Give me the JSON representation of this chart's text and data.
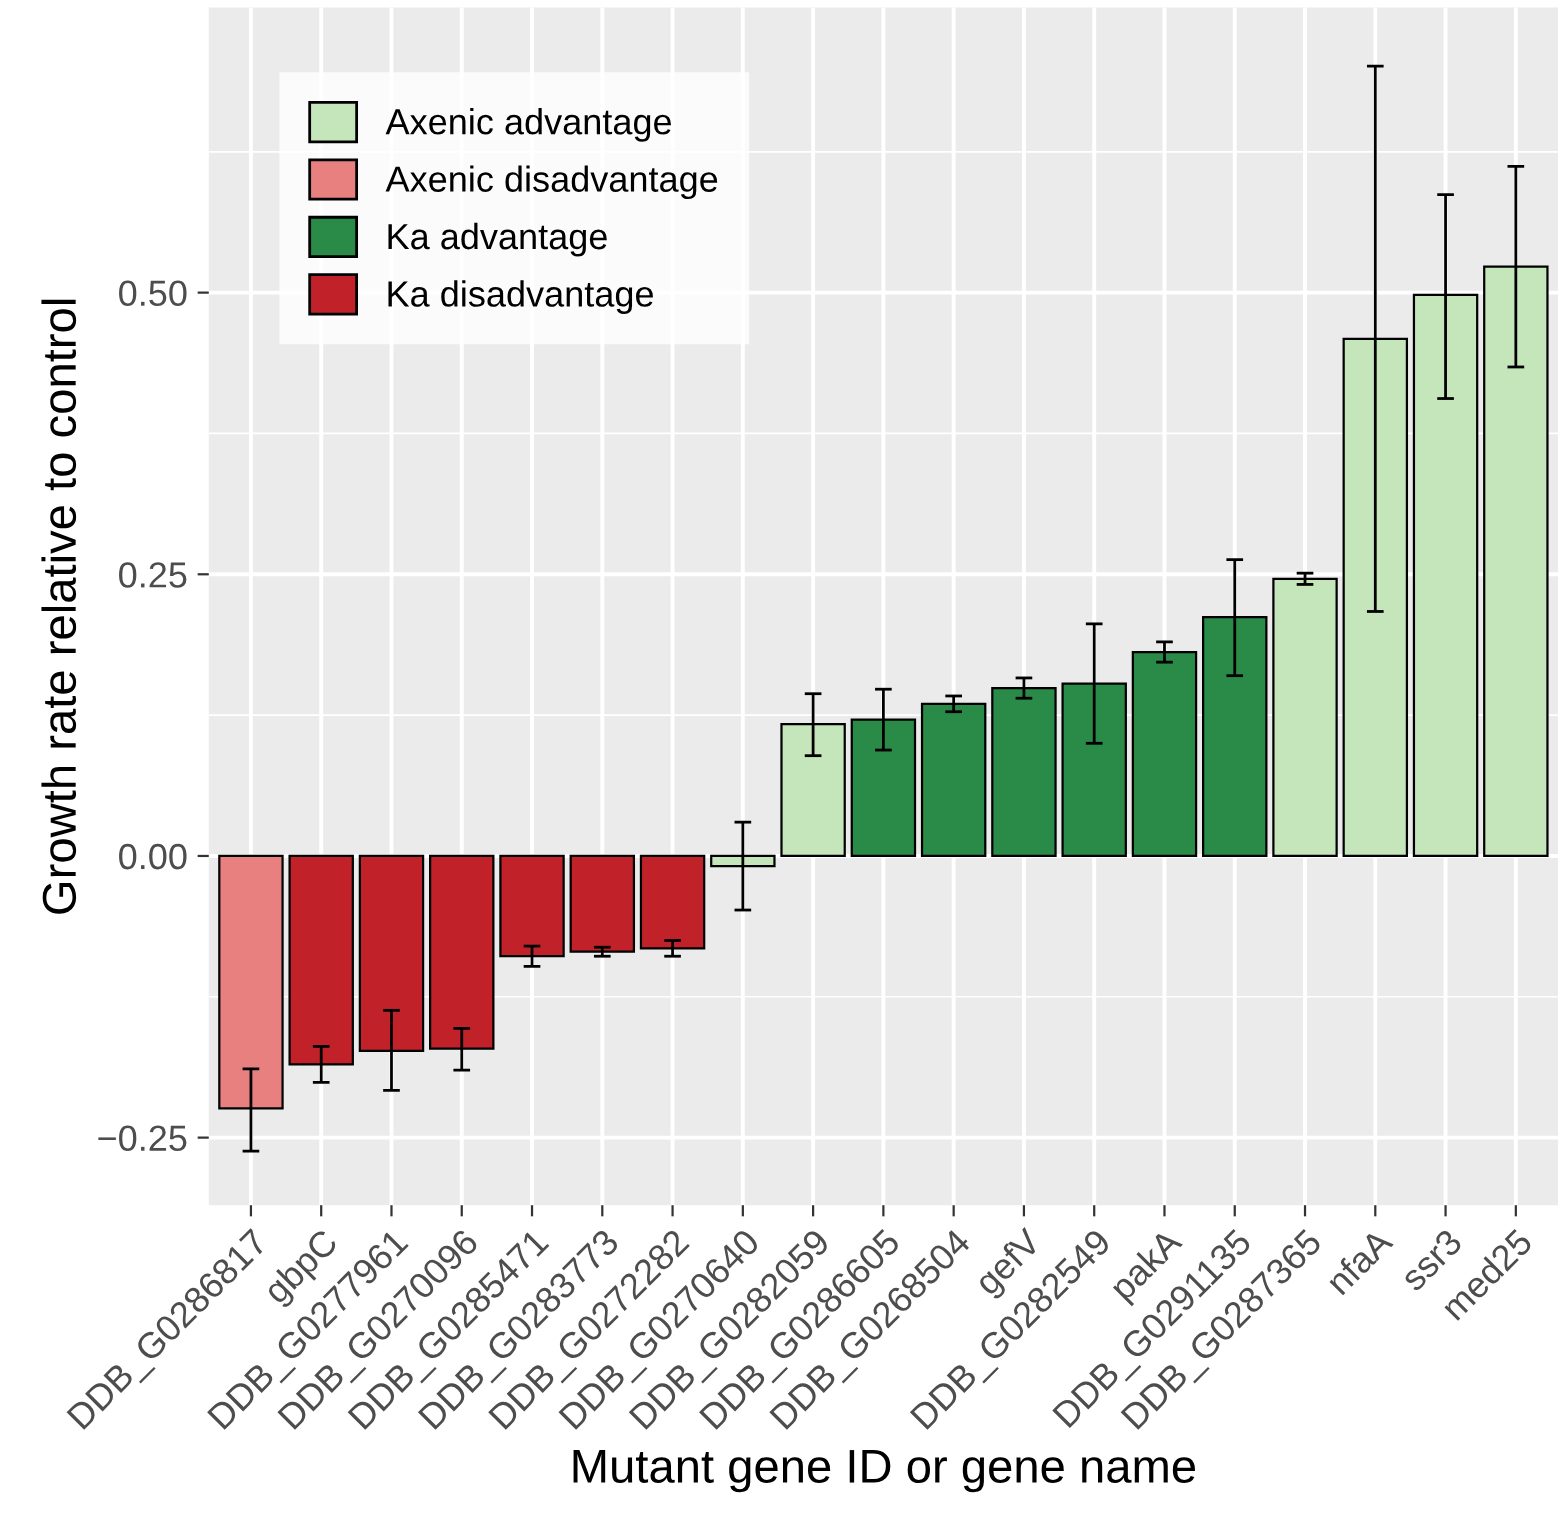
{
  "chart_data": {
    "type": "bar",
    "xlabel": "Mutant gene ID or gene name",
    "ylabel": "Growth rate relative to control",
    "categories": [
      "DDB_G0286817",
      "gbpC",
      "DDB_G0277961",
      "DDB_G0270096",
      "DDB_G0285471",
      "DDB_G0283773",
      "DDB_G0272282",
      "DDB_G0270640",
      "DDB_G0282059",
      "DDB_G0286605",
      "DDB_G0268504",
      "gefV",
      "DDB_G0282549",
      "pakA",
      "DDB_G0291135",
      "DDB_G0287365",
      "nfaA",
      "ssr3",
      "med25"
    ],
    "series": [
      {
        "name": "Axenic advantage",
        "color": "#c5e5bb",
        "values": [
          null,
          null,
          null,
          null,
          null,
          null,
          null,
          -0.009,
          0.117,
          null,
          null,
          null,
          null,
          null,
          null,
          0.246,
          0.459,
          0.498,
          0.523
        ],
        "errors": [
          null,
          null,
          null,
          null,
          null,
          null,
          null,
          [
            -0.048,
            0.03
          ],
          [
            0.089,
            0.144
          ],
          null,
          null,
          null,
          null,
          null,
          null,
          [
            0.241,
            0.251
          ],
          [
            0.217,
            0.701
          ],
          [
            0.406,
            0.587
          ],
          [
            0.434,
            0.612
          ]
        ]
      },
      {
        "name": "Axenic disadvantage",
        "color": "#e88080",
        "values": [
          -0.224,
          null,
          null,
          null,
          null,
          null,
          null,
          null,
          null,
          null,
          null,
          null,
          null,
          null,
          null,
          null,
          null,
          null,
          null
        ],
        "errors": [
          [
            -0.262,
            -0.189
          ],
          null,
          null,
          null,
          null,
          null,
          null,
          null,
          null,
          null,
          null,
          null,
          null,
          null,
          null,
          null,
          null,
          null,
          null
        ]
      },
      {
        "name": "Ka advantage",
        "color": "#2a8a47",
        "values": [
          null,
          null,
          null,
          null,
          null,
          null,
          null,
          null,
          null,
          0.121,
          0.135,
          0.149,
          0.153,
          0.181,
          0.212,
          null,
          null,
          null,
          null
        ],
        "errors": [
          null,
          null,
          null,
          null,
          null,
          null,
          null,
          null,
          null,
          [
            0.094,
            0.148
          ],
          [
            0.128,
            0.142
          ],
          [
            0.14,
            0.158
          ],
          [
            0.1,
            0.206
          ],
          [
            0.172,
            0.19
          ],
          [
            0.16,
            0.263
          ],
          null,
          null,
          null,
          null
        ]
      },
      {
        "name": "Ka disadvantage",
        "color": "#c1222a",
        "values": [
          null,
          -0.185,
          -0.173,
          -0.171,
          -0.089,
          -0.085,
          -0.082,
          null,
          null,
          null,
          null,
          null,
          null,
          null,
          null,
          null,
          null,
          null,
          null
        ],
        "errors": [
          null,
          [
            -0.201,
            -0.169
          ],
          [
            -0.208,
            -0.137
          ],
          [
            -0.19,
            -0.153
          ],
          [
            -0.098,
            -0.08
          ],
          [
            -0.089,
            -0.081
          ],
          [
            -0.089,
            -0.075
          ],
          null,
          null,
          null,
          null,
          null,
          null,
          null,
          null,
          null,
          null,
          null,
          null
        ]
      }
    ],
    "ylim": [
      -0.31,
      0.753
    ],
    "yticks": [
      {
        "value": -0.25,
        "label": "−0.25"
      },
      {
        "value": 0,
        "label": "0.00"
      },
      {
        "value": 0.25,
        "label": "0.25"
      },
      {
        "value": 0.5,
        "label": "0.50"
      }
    ],
    "grid": true,
    "legend": "top left"
  }
}
